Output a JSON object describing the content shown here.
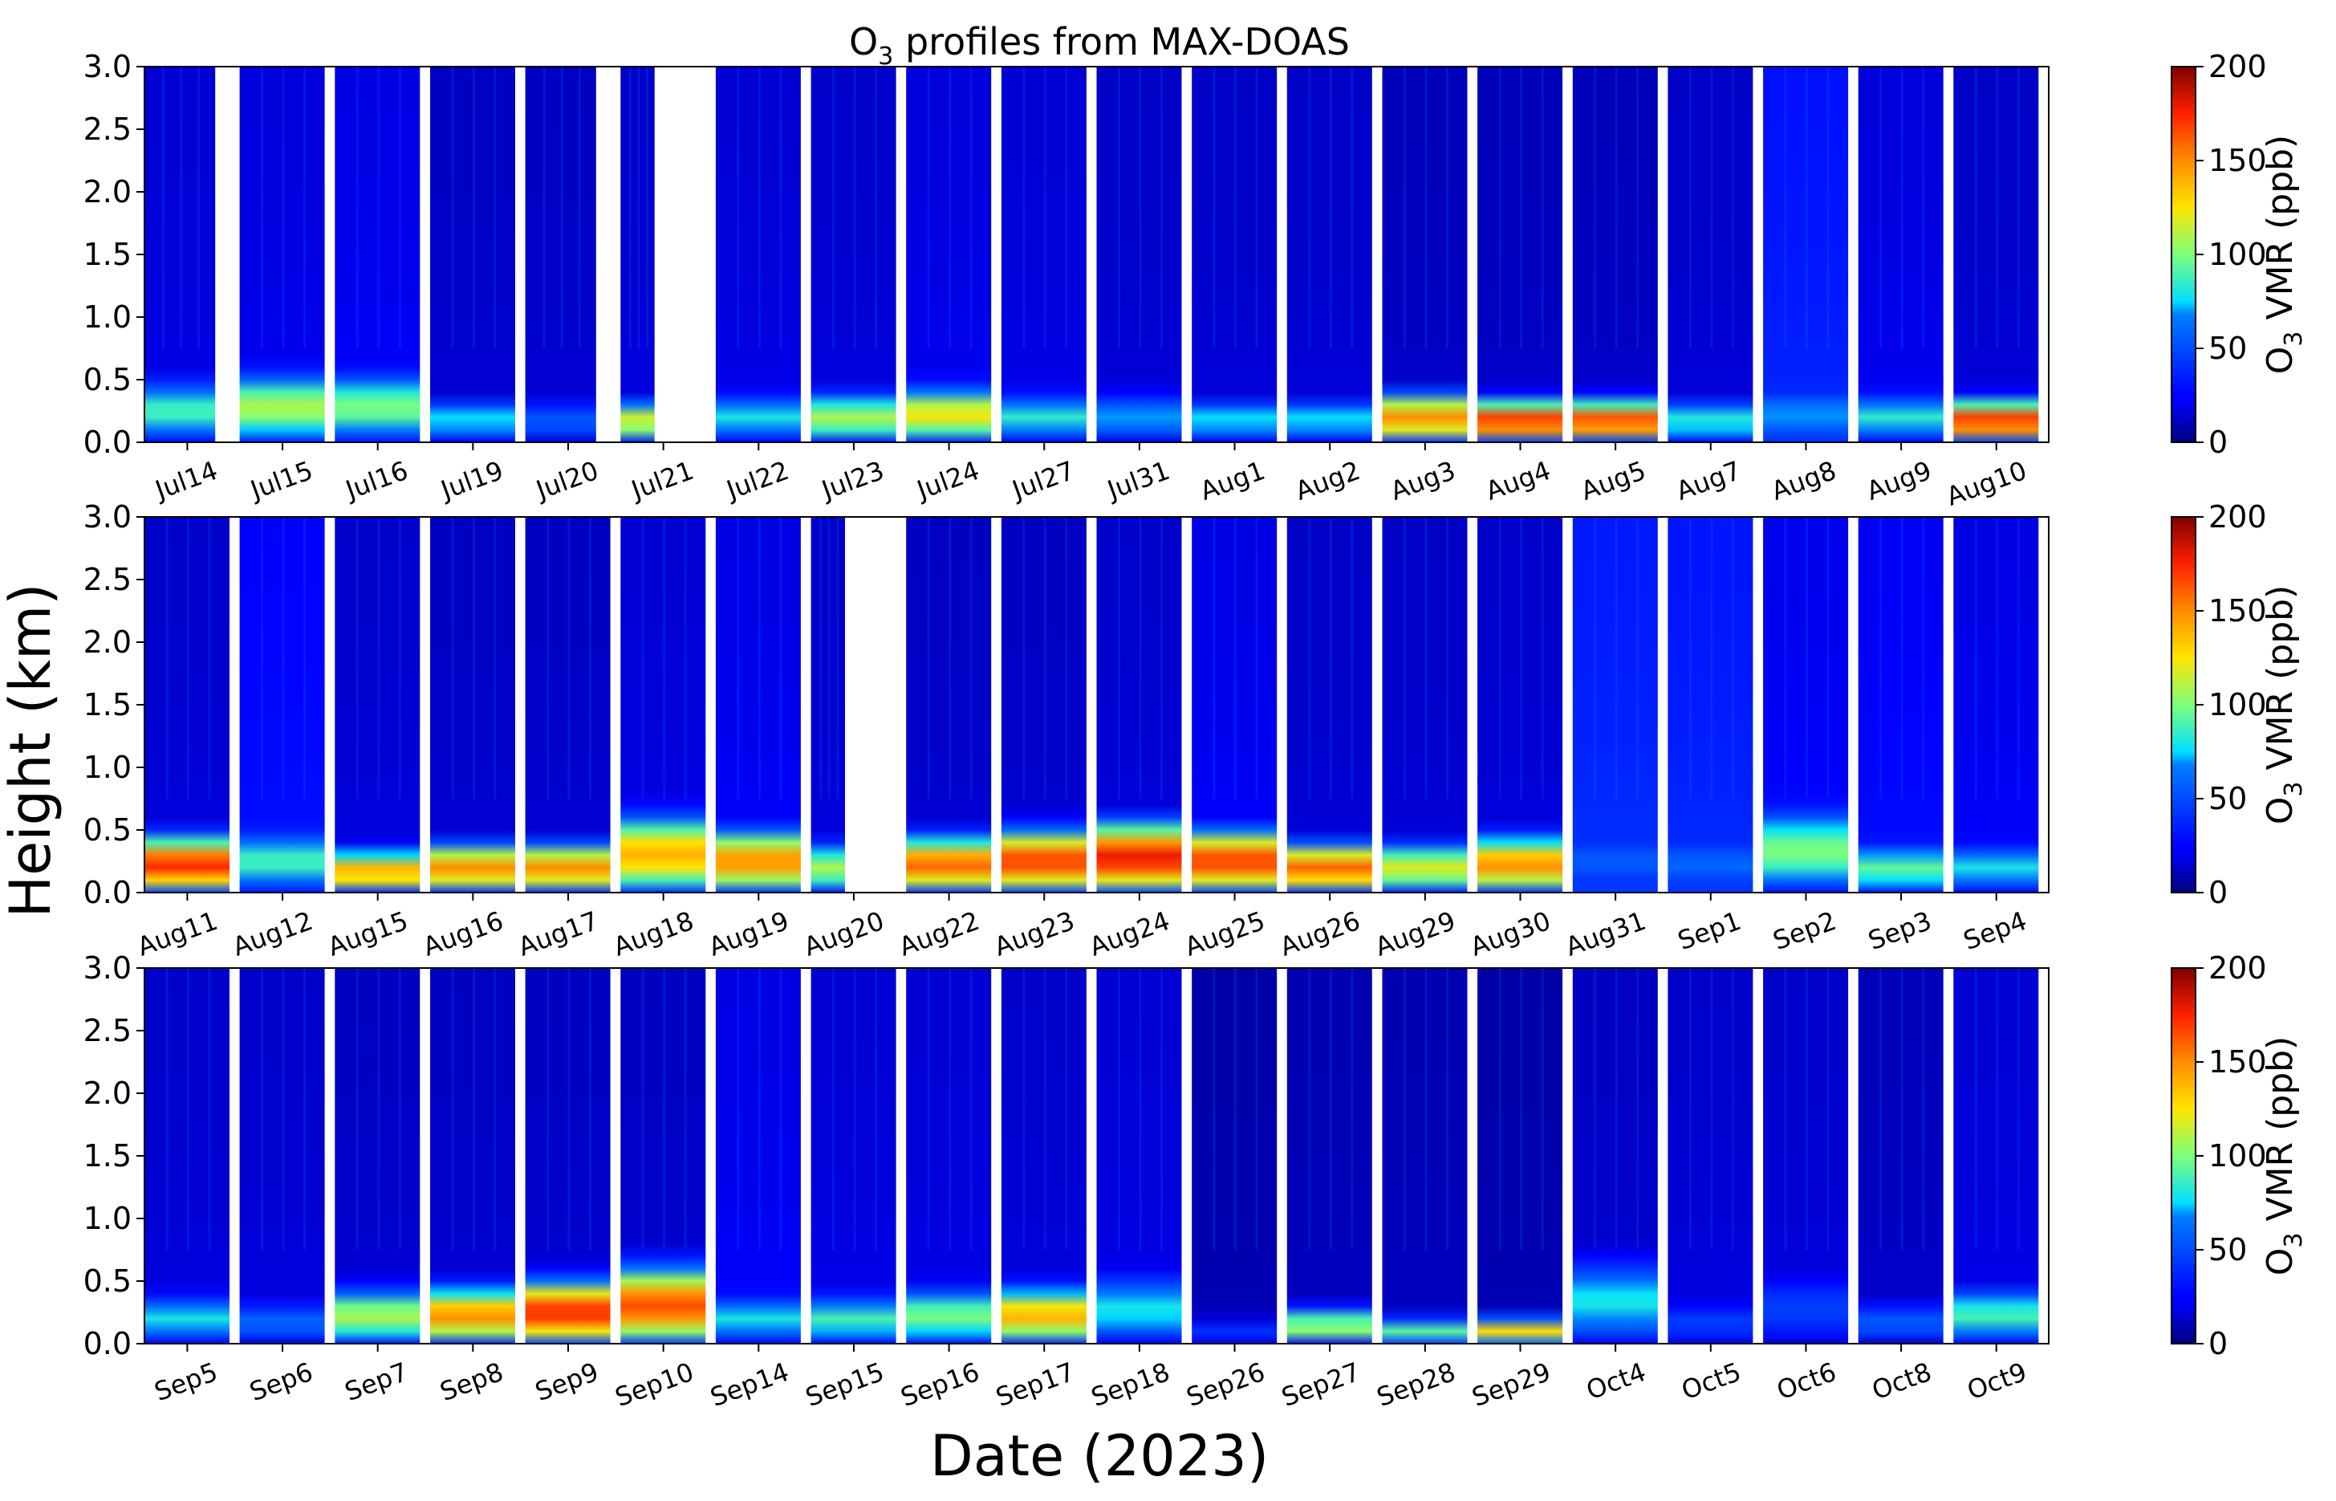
{
  "figure": {
    "title_main": "O",
    "title_sub": "3",
    "title_rest": " profiles from MAX-DOAS",
    "ylabel": "Height (km)",
    "xlabel": "Date (2023)"
  },
  "colorbar": {
    "label_main": "O",
    "label_sub": "3",
    "label_rest": " VMR (ppb)",
    "ticks": [
      "0",
      "50",
      "100",
      "150",
      "200"
    ],
    "range": [
      0,
      200
    ],
    "colormap": "jet"
  },
  "chart_data": {
    "type": "heatmap",
    "panels": [
      {
        "name": "panel-1",
        "ylim": [
          0,
          3.0
        ],
        "yticks": [
          "0.0",
          "0.5",
          "1.0",
          "1.5",
          "2.0",
          "2.5",
          "3.0"
        ],
        "days": [
          {
            "label": "Jul14",
            "peak": 90,
            "top": 0.45,
            "bg": 20,
            "gap_after": 0.8
          },
          {
            "label": "Jul15",
            "peak": 110,
            "top": 0.5,
            "bg": 22,
            "gap_after": 0.3
          },
          {
            "label": "Jul16",
            "peak": 100,
            "top": 0.5,
            "bg": 24,
            "gap_after": 0.3
          },
          {
            "label": "Jul19",
            "peak": 80,
            "top": 0.3,
            "bg": 16,
            "gap_after": 0.3
          },
          {
            "label": "Jul20",
            "peak": 55,
            "top": 0.3,
            "bg": 16,
            "gap_after": 0.8
          },
          {
            "label": "Jul21",
            "peak": 120,
            "top": 0.3,
            "bg": 18,
            "partial": 0.4,
            "gap_after": 0.3
          },
          {
            "label": "Jul22",
            "peak": 80,
            "top": 0.35,
            "bg": 20,
            "gap_after": 0.3
          },
          {
            "label": "Jul23",
            "peak": 110,
            "top": 0.35,
            "bg": 18,
            "gap_after": 0.3
          },
          {
            "label": "Jul24",
            "peak": 125,
            "top": 0.4,
            "bg": 22,
            "gap_after": 0.3
          },
          {
            "label": "Jul27",
            "peak": 85,
            "top": 0.35,
            "bg": 20,
            "gap_after": 0.3
          },
          {
            "label": "Jul31",
            "peak": 70,
            "top": 0.35,
            "bg": 17,
            "gap_after": 0.3
          },
          {
            "label": "Aug1",
            "peak": 80,
            "top": 0.3,
            "bg": 17,
            "gap_after": 0.3
          },
          {
            "label": "Aug2",
            "peak": 80,
            "top": 0.3,
            "bg": 17,
            "gap_after": 0.3
          },
          {
            "label": "Aug3",
            "peak": 150,
            "top": 0.35,
            "bg": 14,
            "gap_after": 0.3
          },
          {
            "label": "Aug4",
            "peak": 175,
            "top": 0.3,
            "bg": 14,
            "gap_after": 0.3
          },
          {
            "label": "Aug5",
            "peak": 170,
            "top": 0.3,
            "bg": 14,
            "gap_after": 0.3
          },
          {
            "label": "Aug7",
            "peak": 85,
            "top": 0.3,
            "bg": 17,
            "gap_after": 0.3
          },
          {
            "label": "Aug8",
            "peak": 70,
            "top": 0.4,
            "bg": 38,
            "gap_after": 0.3
          },
          {
            "label": "Aug9",
            "peak": 85,
            "top": 0.35,
            "bg": 22,
            "gap_after": 0.3
          },
          {
            "label": "Aug10",
            "peak": 175,
            "top": 0.3,
            "bg": 17,
            "gap_after": 0.3
          }
        ]
      },
      {
        "name": "panel-2",
        "ylim": [
          0,
          3.0
        ],
        "yticks": [
          "0.0",
          "0.5",
          "1.0",
          "1.5",
          "2.0",
          "2.5",
          "3.0"
        ],
        "days": [
          {
            "label": "Aug11",
            "peak": 175,
            "top": 0.4,
            "bg": 18,
            "gap_after": 0.3
          },
          {
            "label": "Aug12",
            "peak": 90,
            "top": 0.45,
            "bg": 30,
            "gap_after": 0.3
          },
          {
            "label": "Aug15",
            "peak": 145,
            "top": 0.3,
            "bg": 18,
            "gap_after": 0.3
          },
          {
            "label": "Aug16",
            "peak": 150,
            "top": 0.35,
            "bg": 16,
            "gap_after": 0.3
          },
          {
            "label": "Aug17",
            "peak": 150,
            "top": 0.35,
            "bg": 16,
            "gap_after": 0.3
          },
          {
            "label": "Aug18",
            "peak": 140,
            "top": 0.55,
            "bg": 20,
            "gap_after": 0.3
          },
          {
            "label": "Aug19",
            "peak": 150,
            "top": 0.45,
            "bg": 24,
            "gap_after": 0.3
          },
          {
            "label": "Aug20",
            "peak": 110,
            "top": 0.35,
            "bg": 18,
            "partial": 0.4,
            "gap_after": 0.3
          },
          {
            "label": "Aug22",
            "peak": 160,
            "top": 0.4,
            "bg": 16,
            "gap_after": 0.3
          },
          {
            "label": "Aug23",
            "peak": 170,
            "top": 0.45,
            "bg": 16,
            "gap_after": 0.3
          },
          {
            "label": "Aug24",
            "peak": 180,
            "top": 0.5,
            "bg": 18,
            "gap_after": 0.3
          },
          {
            "label": "Aug25",
            "peak": 170,
            "top": 0.45,
            "bg": 24,
            "gap_after": 0.3
          },
          {
            "label": "Aug26",
            "peak": 160,
            "top": 0.35,
            "bg": 17,
            "gap_after": 0.3
          },
          {
            "label": "Aug29",
            "peak": 120,
            "top": 0.35,
            "bg": 17,
            "gap_after": 0.3
          },
          {
            "label": "Aug30",
            "peak": 150,
            "top": 0.4,
            "bg": 18,
            "gap_after": 0.3
          },
          {
            "label": "Aug31",
            "peak": 55,
            "top": 0.45,
            "bg": 42,
            "gap_after": 0.3
          },
          {
            "label": "Sep1",
            "peak": 60,
            "top": 0.4,
            "bg": 40,
            "gap_after": 0.3
          },
          {
            "label": "Sep2",
            "peak": 100,
            "top": 0.6,
            "bg": 26,
            "gap_after": 0.3
          },
          {
            "label": "Sep3",
            "peak": 95,
            "top": 0.35,
            "bg": 28,
            "gap_after": 0.3
          },
          {
            "label": "Sep4",
            "peak": 80,
            "top": 0.35,
            "bg": 24,
            "gap_after": 0.3
          }
        ]
      },
      {
        "name": "panel-3",
        "ylim": [
          0,
          3.0
        ],
        "yticks": [
          "0.0",
          "0.5",
          "1.0",
          "1.5",
          "2.0",
          "2.5",
          "3.0"
        ],
        "days": [
          {
            "label": "Sep5",
            "peak": 80,
            "top": 0.35,
            "bg": 18,
            "gap_after": 0.3
          },
          {
            "label": "Sep6",
            "peak": 60,
            "top": 0.3,
            "bg": 18,
            "gap_after": 0.3
          },
          {
            "label": "Sep7",
            "peak": 110,
            "top": 0.4,
            "bg": 16,
            "gap_after": 0.3
          },
          {
            "label": "Sep8",
            "peak": 150,
            "top": 0.4,
            "bg": 16,
            "gap_after": 0.3
          },
          {
            "label": "Sep9",
            "peak": 175,
            "top": 0.45,
            "bg": 16,
            "gap_after": 0.3
          },
          {
            "label": "Sep10",
            "peak": 165,
            "top": 0.55,
            "bg": 16,
            "gap_after": 0.3
          },
          {
            "label": "Sep14",
            "peak": 80,
            "top": 0.35,
            "bg": 24,
            "gap_after": 0.3
          },
          {
            "label": "Sep15",
            "peak": 90,
            "top": 0.35,
            "bg": 20,
            "gap_after": 0.3
          },
          {
            "label": "Sep16",
            "peak": 100,
            "top": 0.4,
            "bg": 20,
            "gap_after": 0.3
          },
          {
            "label": "Sep17",
            "peak": 140,
            "top": 0.4,
            "bg": 18,
            "gap_after": 0.3
          },
          {
            "label": "Sep18",
            "peak": 80,
            "top": 0.5,
            "bg": 20,
            "gap_after": 0.3
          },
          {
            "label": "Sep26",
            "peak": 40,
            "top": 0.15,
            "bg": 10,
            "gap_after": 0.3
          },
          {
            "label": "Sep27",
            "peak": 110,
            "top": 0.25,
            "bg": 12,
            "gap_after": 0.3
          },
          {
            "label": "Sep28",
            "peak": 95,
            "top": 0.15,
            "bg": 12,
            "gap_after": 0.3
          },
          {
            "label": "Sep29",
            "peak": 130,
            "top": 0.15,
            "bg": 10,
            "gap_after": 0.3
          },
          {
            "label": "Oct4",
            "peak": 80,
            "top": 0.6,
            "bg": 16,
            "gap_after": 0.3
          },
          {
            "label": "Oct5",
            "peak": 45,
            "top": 0.3,
            "bg": 18,
            "gap_after": 0.3
          },
          {
            "label": "Oct6",
            "peak": 45,
            "top": 0.5,
            "bg": 18,
            "gap_after": 0.3
          },
          {
            "label": "Oct8",
            "peak": 55,
            "top": 0.3,
            "bg": 14,
            "gap_after": 0.3
          },
          {
            "label": "Oct9",
            "peak": 90,
            "top": 0.4,
            "bg": 20,
            "gap_after": 0.3
          }
        ]
      }
    ]
  }
}
